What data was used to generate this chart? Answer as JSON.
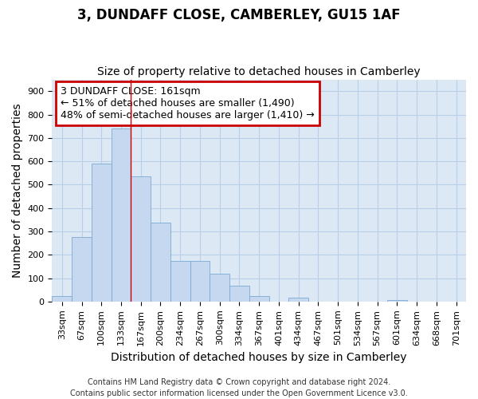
{
  "title": "3, DUNDAFF CLOSE, CAMBERLEY, GU15 1AF",
  "subtitle": "Size of property relative to detached houses in Camberley",
  "xlabel": "Distribution of detached houses by size in Camberley",
  "ylabel": "Number of detached properties",
  "categories": [
    "33sqm",
    "67sqm",
    "100sqm",
    "133sqm",
    "167sqm",
    "200sqm",
    "234sqm",
    "267sqm",
    "300sqm",
    "334sqm",
    "367sqm",
    "401sqm",
    "434sqm",
    "467sqm",
    "501sqm",
    "534sqm",
    "567sqm",
    "601sqm",
    "634sqm",
    "668sqm",
    "701sqm"
  ],
  "values": [
    25,
    275,
    590,
    740,
    535,
    338,
    175,
    175,
    120,
    67,
    25,
    0,
    18,
    0,
    0,
    0,
    0,
    8,
    0,
    0,
    0
  ],
  "bar_color": "#c5d8f0",
  "bar_edge_color": "#7aaad4",
  "annotation_line1": "3 DUNDAFF CLOSE: 161sqm",
  "annotation_line2": "← 51% of detached houses are smaller (1,490)",
  "annotation_line3": "48% of semi-detached houses are larger (1,410) →",
  "annotation_box_color": "#ffffff",
  "annotation_border_color": "#cc0000",
  "vline_color": "#cc0000",
  "vline_x": 3.5,
  "ylim": [
    0,
    950
  ],
  "yticks": [
    0,
    100,
    200,
    300,
    400,
    500,
    600,
    700,
    800,
    900
  ],
  "footer_line1": "Contains HM Land Registry data © Crown copyright and database right 2024.",
  "footer_line2": "Contains public sector information licensed under the Open Government Licence v3.0.",
  "background_color": "#ffffff",
  "plot_bg_color": "#dde8f5",
  "grid_color": "#b8cfe8",
  "title_fontsize": 12,
  "subtitle_fontsize": 10,
  "axis_label_fontsize": 10,
  "tick_fontsize": 8,
  "footer_fontsize": 7,
  "annotation_fontsize": 9
}
